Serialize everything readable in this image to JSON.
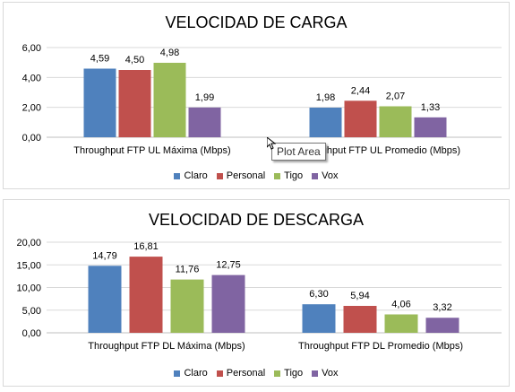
{
  "tooltip": {
    "text": "Plot Area"
  },
  "colors": {
    "Claro": "#4f81bd",
    "Personal": "#c0504d",
    "Tigo": "#9bbb59",
    "Vox": "#8064a2",
    "grid": "#d9d9d9"
  },
  "chart_data": [
    {
      "type": "bar",
      "title": "VELOCIDAD DE CARGA",
      "categories": [
        "Throughput FTP UL Máxima (Mbps)",
        "Throughput FTP UL Promedio (Mbps)"
      ],
      "series": [
        {
          "name": "Claro",
          "values": [
            4.59,
            1.98
          ],
          "labels": [
            "4,59",
            "1,98"
          ]
        },
        {
          "name": "Personal",
          "values": [
            4.5,
            2.44
          ],
          "labels": [
            "4,50",
            "2,44"
          ]
        },
        {
          "name": "Tigo",
          "values": [
            4.98,
            2.07
          ],
          "labels": [
            "4,98",
            "2,07"
          ]
        },
        {
          "name": "Vox",
          "values": [
            1.99,
            1.33
          ],
          "labels": [
            "1,99",
            "1,33"
          ]
        }
      ],
      "ylim": [
        0,
        6
      ],
      "yticks": [
        0,
        2,
        4,
        6
      ],
      "ytick_labels": [
        "0,00",
        "2,00",
        "4,00",
        "6,00"
      ],
      "grid": true,
      "legend": "bottom"
    },
    {
      "type": "bar",
      "title": "VELOCIDAD DE DESCARGA",
      "categories": [
        "Throughput FTP DL Máxima (Mbps)",
        "Throughput FTP DL Promedio (Mbps)"
      ],
      "series": [
        {
          "name": "Claro",
          "values": [
            14.79,
            6.3
          ],
          "labels": [
            "14,79",
            "6,30"
          ]
        },
        {
          "name": "Personal",
          "values": [
            16.81,
            5.94
          ],
          "labels": [
            "16,81",
            "5,94"
          ]
        },
        {
          "name": "Tigo",
          "values": [
            11.76,
            4.06
          ],
          "labels": [
            "11,76",
            "4,06"
          ]
        },
        {
          "name": "Vox",
          "values": [
            12.75,
            3.32
          ],
          "labels": [
            "12,75",
            "3,32"
          ]
        }
      ],
      "ylim": [
        0,
        20
      ],
      "yticks": [
        0,
        5,
        10,
        15,
        20
      ],
      "ytick_labels": [
        "0,00",
        "5,00",
        "10,00",
        "15,00",
        "20,00"
      ],
      "grid": true,
      "legend": "bottom"
    }
  ]
}
